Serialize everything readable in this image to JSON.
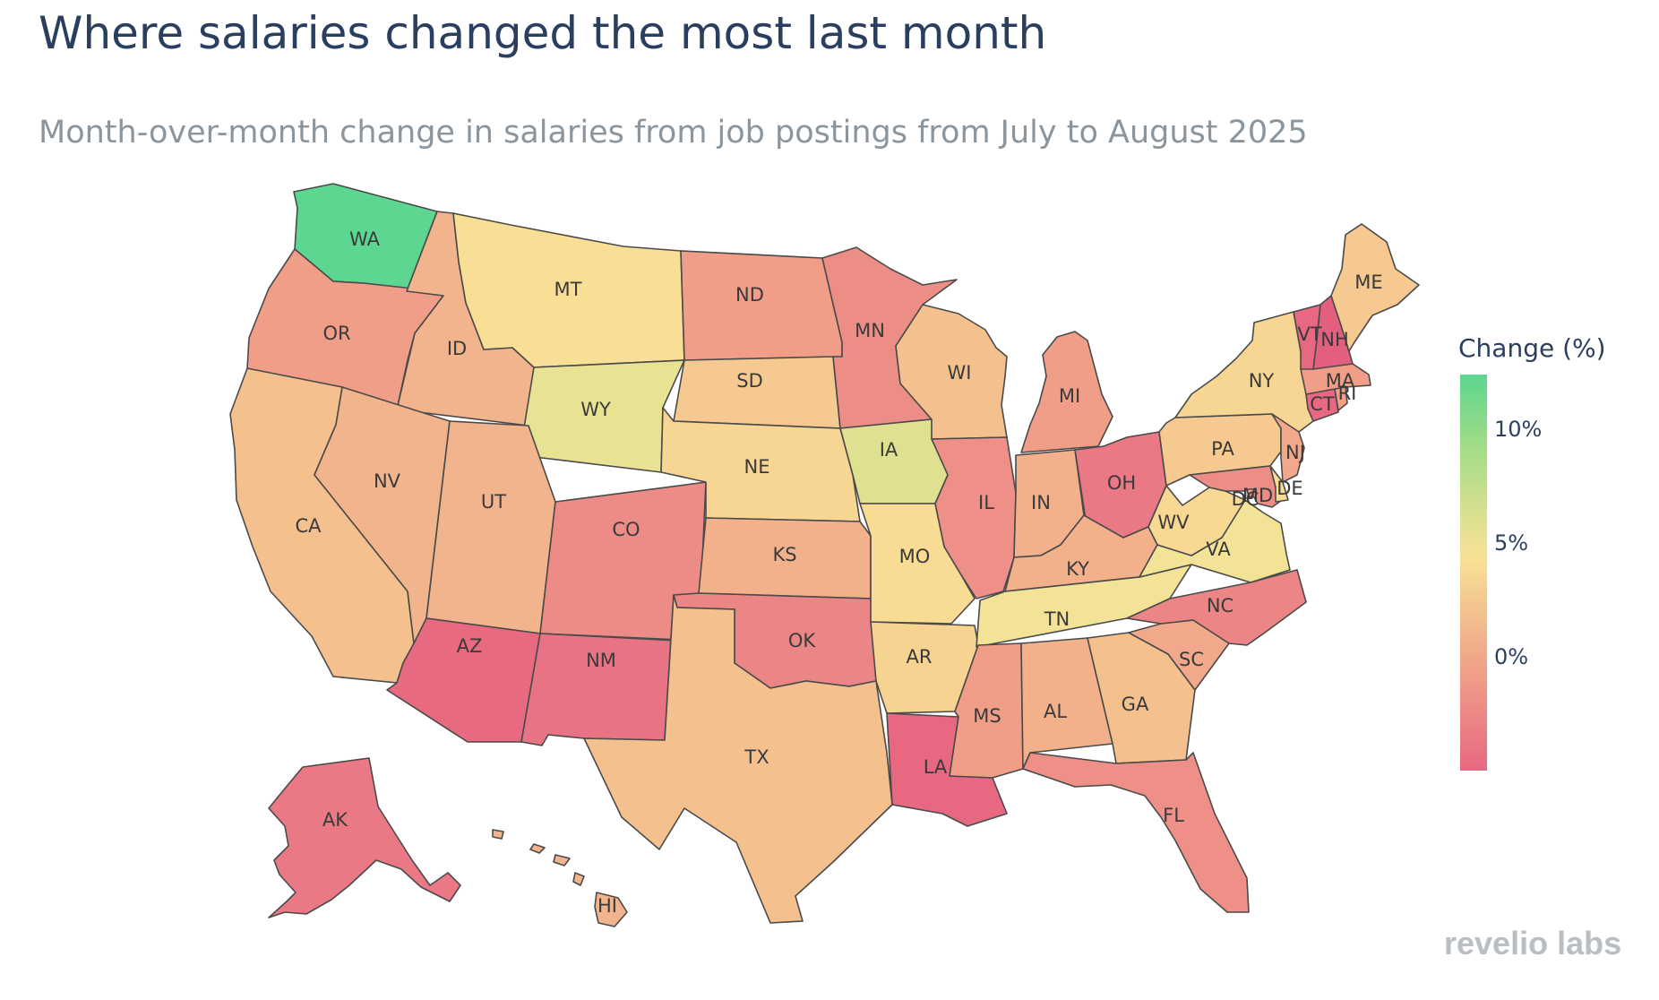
{
  "title": "Where salaries changed the most last month",
  "subtitle": "Month-over-month change in salaries from job postings from July to August 2025",
  "legend": {
    "title": "Change (%)",
    "ticks": [
      "10%",
      "5%",
      "0%"
    ],
    "scale_colors": [
      "#5cd690",
      "#9ddc87",
      "#dfe191",
      "#f9e195",
      "#f3c68f",
      "#f09e88",
      "#e86882"
    ]
  },
  "logo_text": "revelio labs",
  "states": [
    {
      "code": "WA",
      "color": "#5cd690"
    },
    {
      "code": "OR",
      "color": "#f09e88"
    },
    {
      "code": "CA",
      "color": "#f3c08e"
    },
    {
      "code": "ID",
      "color": "#f2b48c"
    },
    {
      "code": "NV",
      "color": "#f2b48c"
    },
    {
      "code": "MT",
      "color": "#f8df95"
    },
    {
      "code": "WY",
      "color": "#e8e393"
    },
    {
      "code": "UT",
      "color": "#f2b48c"
    },
    {
      "code": "AZ",
      "color": "#e86a81"
    },
    {
      "code": "CO",
      "color": "#ed8b86"
    },
    {
      "code": "NM",
      "color": "#e87384"
    },
    {
      "code": "ND",
      "color": "#f09e88"
    },
    {
      "code": "SD",
      "color": "#f5c98f"
    },
    {
      "code": "NE",
      "color": "#f7d592"
    },
    {
      "code": "KS",
      "color": "#f2b08b"
    },
    {
      "code": "OK",
      "color": "#ec8686"
    },
    {
      "code": "TX",
      "color": "#f3c08e"
    },
    {
      "code": "MN",
      "color": "#ed8e86"
    },
    {
      "code": "IA",
      "color": "#dfe191"
    },
    {
      "code": "MO",
      "color": "#f8dc94"
    },
    {
      "code": "AR",
      "color": "#f7d392"
    },
    {
      "code": "LA",
      "color": "#e86882"
    },
    {
      "code": "WI",
      "color": "#f3c08e"
    },
    {
      "code": "IL",
      "color": "#ee9087"
    },
    {
      "code": "MI",
      "color": "#f09e88"
    },
    {
      "code": "IN",
      "color": "#f2b08b"
    },
    {
      "code": "OH",
      "color": "#ea7985"
    },
    {
      "code": "KY",
      "color": "#f2b08b"
    },
    {
      "code": "TN",
      "color": "#f2e396"
    },
    {
      "code": "MS",
      "color": "#f09e88"
    },
    {
      "code": "AL",
      "color": "#f2b08b"
    },
    {
      "code": "GA",
      "color": "#f3c08e"
    },
    {
      "code": "FL",
      "color": "#ee9087"
    },
    {
      "code": "SC",
      "color": "#f2a88a"
    },
    {
      "code": "NC",
      "color": "#ec8686"
    },
    {
      "code": "VA",
      "color": "#f2e396"
    },
    {
      "code": "WV",
      "color": "#f8d893"
    },
    {
      "code": "PA",
      "color": "#f5c98f"
    },
    {
      "code": "NY",
      "color": "#f7d592"
    },
    {
      "code": "NJ",
      "color": "#f2a88a"
    },
    {
      "code": "MD",
      "color": "#ed8e86"
    },
    {
      "code": "DE",
      "color": "#f8dc94"
    },
    {
      "code": "DC",
      "color": "#f2b08b"
    },
    {
      "code": "CT",
      "color": "#e86882"
    },
    {
      "code": "RI",
      "color": "#f09e88"
    },
    {
      "code": "MA",
      "color": "#f09e88"
    },
    {
      "code": "VT",
      "color": "#e86882"
    },
    {
      "code": "NH",
      "color": "#e25f7e"
    },
    {
      "code": "ME",
      "color": "#f5c98f"
    },
    {
      "code": "AK",
      "color": "#ea7985"
    },
    {
      "code": "HI",
      "color": "#f2b48c"
    }
  ]
}
